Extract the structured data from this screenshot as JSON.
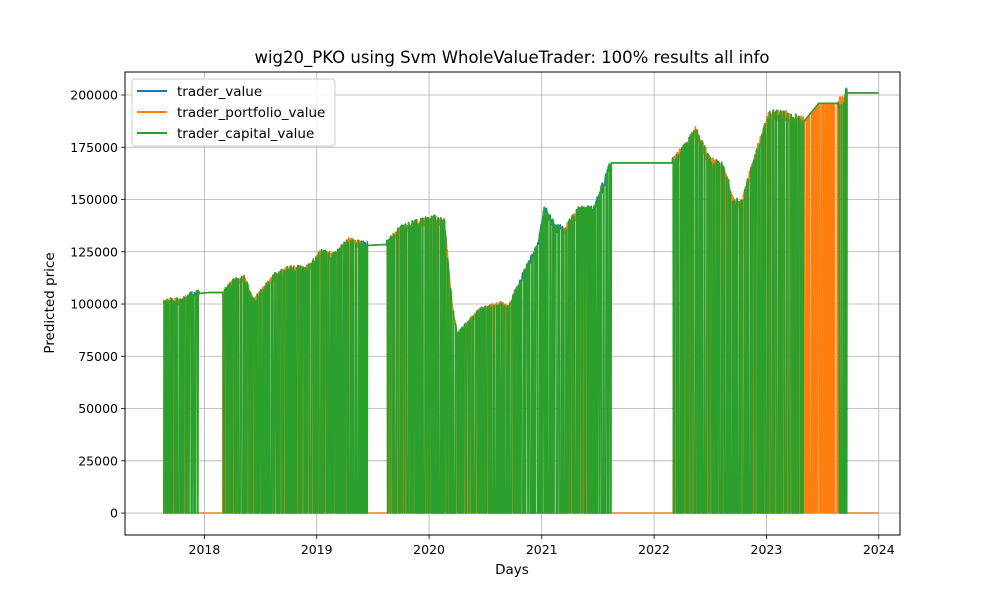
{
  "chart_data": {
    "type": "line",
    "title": "wig20_PKO using Svm WholeValueTrader: 100% results all info",
    "xlabel": "Days",
    "ylabel": "Predicted price",
    "xlim": [
      "2017-04-18",
      "2024-03-10"
    ],
    "ylim": [
      -10500,
      211000
    ],
    "x_ticks": [
      "2018",
      "2019",
      "2020",
      "2021",
      "2022",
      "2023",
      "2024"
    ],
    "y_ticks": [
      0,
      25000,
      50000,
      75000,
      100000,
      125000,
      150000,
      175000,
      200000
    ],
    "y_tick_labels": [
      "0",
      "25000",
      "50000",
      "75000",
      "100000",
      "125000",
      "150000",
      "175000",
      "200000"
    ],
    "grid": true,
    "legend_position": "top-left",
    "series": [
      {
        "name": "trader_value",
        "color": "#1f77b4"
      },
      {
        "name": "trader_portfolio_value",
        "color": "#ff7f0e"
      },
      {
        "name": "trader_capital_value",
        "color": "#2ca02c"
      }
    ],
    "x_start": "2017-08-20",
    "x_end": "2023-12-31",
    "envelope": [
      [
        "2017-08-20",
        100000
      ],
      [
        "2017-09-15",
        102000
      ],
      [
        "2017-10-20",
        101000
      ],
      [
        "2017-11-15",
        104500
      ],
      [
        "2017-12-10",
        105000
      ],
      [
        "2018-01-15",
        105500
      ],
      [
        "2018-03-01",
        105500
      ],
      [
        "2018-04-01",
        110000
      ],
      [
        "2018-05-10",
        112500
      ],
      [
        "2018-06-10",
        101000
      ],
      [
        "2018-07-01",
        105000
      ],
      [
        "2018-08-15",
        113000
      ],
      [
        "2018-10-01",
        116500
      ],
      [
        "2018-12-01",
        117000
      ],
      [
        "2019-01-15",
        124500
      ],
      [
        "2019-03-01",
        123000
      ],
      [
        "2019-04-15",
        130000
      ],
      [
        "2019-06-10",
        128000
      ],
      [
        "2019-08-15",
        128500
      ],
      [
        "2019-10-01",
        136000
      ],
      [
        "2019-11-01",
        137500
      ],
      [
        "2020-01-15",
        140500
      ],
      [
        "2020-02-20",
        139000
      ],
      [
        "2020-03-15",
        100000
      ],
      [
        "2020-04-01",
        85000
      ],
      [
        "2020-05-01",
        90000
      ],
      [
        "2020-06-15",
        97000
      ],
      [
        "2020-07-15",
        98000
      ],
      [
        "2020-08-15",
        100000
      ],
      [
        "2020-09-15",
        98000
      ],
      [
        "2020-10-15",
        108000
      ],
      [
        "2020-11-15",
        118000
      ],
      [
        "2020-12-20",
        128000
      ],
      [
        "2021-01-10",
        146000
      ],
      [
        "2021-02-15",
        136000
      ],
      [
        "2021-03-20",
        136000
      ],
      [
        "2021-05-01",
        144500
      ],
      [
        "2021-06-20",
        145000
      ],
      [
        "2021-08-15",
        167500
      ],
      [
        "2022-03-01",
        167500
      ],
      [
        "2022-04-15",
        175000
      ],
      [
        "2022-05-15",
        183000
      ],
      [
        "2022-07-01",
        168000
      ],
      [
        "2022-08-15",
        165000
      ],
      [
        "2022-09-15",
        150000
      ],
      [
        "2022-10-10",
        147000
      ],
      [
        "2022-11-20",
        168000
      ],
      [
        "2023-01-10",
        190000
      ],
      [
        "2023-03-01",
        190000
      ],
      [
        "2023-05-01",
        187000
      ],
      [
        "2023-06-20",
        196000
      ],
      [
        "2023-08-20",
        196000
      ],
      [
        "2023-09-05",
        197000
      ],
      [
        "2023-09-20",
        201000
      ],
      [
        "2023-12-31",
        201000
      ]
    ],
    "flat_segments": [
      [
        "2017-12-15",
        "2018-03-01",
        105500
      ],
      [
        "2019-06-15",
        "2019-08-15",
        128500
      ],
      [
        "2021-08-15",
        "2022-03-01",
        167500
      ],
      [
        "2023-05-01",
        "2023-06-20",
        187000
      ],
      [
        "2023-06-20",
        "2023-08-20",
        196000
      ],
      [
        "2023-09-20",
        "2023-12-31",
        201000
      ]
    ],
    "zero_periods": [
      [
        "2017-11-05",
        "2018-03-01"
      ],
      [
        "2019-06-01",
        "2019-08-20"
      ],
      [
        "2020-10-20",
        "2021-03-10"
      ],
      [
        "2021-06-01",
        "2022-03-01"
      ],
      [
        "2023-09-15",
        "2023-12-31"
      ]
    ]
  }
}
